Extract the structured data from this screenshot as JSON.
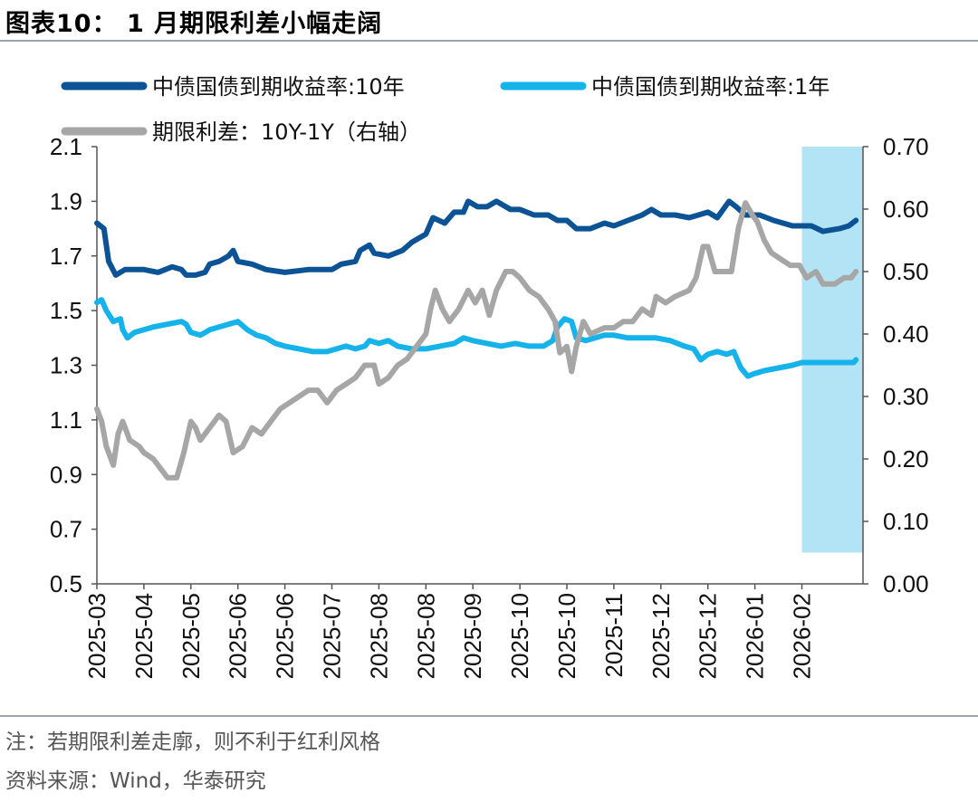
{
  "page": {
    "title": "图表10： 1 月期限利差小幅走阔",
    "note": "注：若期限利差走廓，则不利于红利风格",
    "source": "资料来源：Wind，华泰研究"
  },
  "chart_data": {
    "type": "line",
    "title": "1 月期限利差小幅走阔",
    "x_labels": [
      "2025-03",
      "2025-04",
      "2025-05",
      "2025-06",
      "2025-06",
      "2025-07",
      "2025-08",
      "2025-08",
      "2025-09",
      "2025-10",
      "2025-10",
      "2025-11",
      "2025-12",
      "2025-12",
      "2026-01",
      "2026-02"
    ],
    "y_left": {
      "min": 0.5,
      "max": 2.1,
      "ticks": [
        "0.5",
        "0.7",
        "0.9",
        "1.1",
        "1.3",
        "1.5",
        "1.7",
        "1.9",
        "2.1"
      ]
    },
    "y_right": {
      "min": 0.0,
      "max": 0.7,
      "ticks": [
        "0.00",
        "0.10",
        "0.20",
        "0.30",
        "0.40",
        "0.50",
        "0.60",
        "0.70"
      ]
    },
    "highlight": {
      "x_from": 15.0,
      "x_to": 16.3,
      "y_from": 0.05,
      "y_to": 0.7,
      "color": "#b3e4f6"
    },
    "series": [
      {
        "name": "中债国债到期收益率:10年",
        "axis": "left",
        "color": "#0b5394",
        "points": [
          [
            0,
            1.82
          ],
          [
            0.15,
            1.8
          ],
          [
            0.25,
            1.68
          ],
          [
            0.4,
            1.63
          ],
          [
            0.6,
            1.65
          ],
          [
            1.0,
            1.65
          ],
          [
            1.3,
            1.64
          ],
          [
            1.6,
            1.66
          ],
          [
            1.8,
            1.65
          ],
          [
            1.9,
            1.63
          ],
          [
            2.1,
            1.63
          ],
          [
            2.3,
            1.64
          ],
          [
            2.4,
            1.67
          ],
          [
            2.6,
            1.68
          ],
          [
            2.8,
            1.7
          ],
          [
            2.9,
            1.72
          ],
          [
            3.0,
            1.68
          ],
          [
            3.3,
            1.67
          ],
          [
            3.6,
            1.65
          ],
          [
            4.0,
            1.64
          ],
          [
            4.5,
            1.65
          ],
          [
            5.0,
            1.65
          ],
          [
            5.2,
            1.67
          ],
          [
            5.5,
            1.68
          ],
          [
            5.6,
            1.72
          ],
          [
            5.8,
            1.74
          ],
          [
            5.9,
            1.71
          ],
          [
            6.2,
            1.7
          ],
          [
            6.5,
            1.72
          ],
          [
            6.7,
            1.75
          ],
          [
            7.0,
            1.78
          ],
          [
            7.15,
            1.84
          ],
          [
            7.4,
            1.82
          ],
          [
            7.6,
            1.86
          ],
          [
            7.8,
            1.86
          ],
          [
            7.9,
            1.9
          ],
          [
            8.1,
            1.88
          ],
          [
            8.3,
            1.88
          ],
          [
            8.5,
            1.9
          ],
          [
            8.8,
            1.87
          ],
          [
            9.0,
            1.87
          ],
          [
            9.3,
            1.85
          ],
          [
            9.6,
            1.85
          ],
          [
            9.8,
            1.83
          ],
          [
            10.0,
            1.83
          ],
          [
            10.2,
            1.8
          ],
          [
            10.5,
            1.8
          ],
          [
            10.8,
            1.82
          ],
          [
            11.0,
            1.81
          ],
          [
            11.3,
            1.83
          ],
          [
            11.6,
            1.85
          ],
          [
            11.8,
            1.87
          ],
          [
            12.0,
            1.85
          ],
          [
            12.3,
            1.85
          ],
          [
            12.6,
            1.84
          ],
          [
            12.8,
            1.85
          ],
          [
            13.0,
            1.86
          ],
          [
            13.2,
            1.84
          ],
          [
            13.45,
            1.9
          ],
          [
            13.6,
            1.88
          ],
          [
            13.8,
            1.85
          ],
          [
            14.1,
            1.85
          ],
          [
            14.4,
            1.83
          ],
          [
            14.8,
            1.81
          ],
          [
            15.2,
            1.81
          ],
          [
            15.45,
            1.79
          ],
          [
            15.8,
            1.8
          ],
          [
            16.0,
            1.81
          ],
          [
            16.15,
            1.83
          ]
        ]
      },
      {
        "name": "中债国债到期收益率:1年",
        "axis": "left",
        "color": "#15b3ea",
        "points": [
          [
            0,
            1.53
          ],
          [
            0.1,
            1.54
          ],
          [
            0.2,
            1.5
          ],
          [
            0.35,
            1.46
          ],
          [
            0.5,
            1.47
          ],
          [
            0.55,
            1.43
          ],
          [
            0.65,
            1.4
          ],
          [
            0.8,
            1.42
          ],
          [
            1.0,
            1.43
          ],
          [
            1.2,
            1.44
          ],
          [
            1.5,
            1.45
          ],
          [
            1.8,
            1.46
          ],
          [
            1.9,
            1.45
          ],
          [
            2.0,
            1.42
          ],
          [
            2.2,
            1.41
          ],
          [
            2.4,
            1.43
          ],
          [
            2.6,
            1.44
          ],
          [
            2.8,
            1.45
          ],
          [
            3.0,
            1.46
          ],
          [
            3.2,
            1.43
          ],
          [
            3.4,
            1.41
          ],
          [
            3.6,
            1.4
          ],
          [
            3.8,
            1.38
          ],
          [
            4.0,
            1.37
          ],
          [
            4.3,
            1.36
          ],
          [
            4.6,
            1.35
          ],
          [
            4.9,
            1.35
          ],
          [
            5.1,
            1.36
          ],
          [
            5.3,
            1.37
          ],
          [
            5.5,
            1.36
          ],
          [
            5.7,
            1.37
          ],
          [
            5.8,
            1.39
          ],
          [
            6.0,
            1.38
          ],
          [
            6.2,
            1.39
          ],
          [
            6.4,
            1.37
          ],
          [
            6.7,
            1.36
          ],
          [
            7.0,
            1.36
          ],
          [
            7.3,
            1.37
          ],
          [
            7.6,
            1.38
          ],
          [
            7.8,
            1.4
          ],
          [
            8.0,
            1.39
          ],
          [
            8.3,
            1.38
          ],
          [
            8.6,
            1.37
          ],
          [
            8.9,
            1.38
          ],
          [
            9.2,
            1.37
          ],
          [
            9.5,
            1.37
          ],
          [
            9.7,
            1.39
          ],
          [
            9.8,
            1.44
          ],
          [
            9.95,
            1.47
          ],
          [
            10.1,
            1.46
          ],
          [
            10.2,
            1.4
          ],
          [
            10.4,
            1.39
          ],
          [
            10.6,
            1.4
          ],
          [
            10.8,
            1.41
          ],
          [
            11.0,
            1.41
          ],
          [
            11.3,
            1.4
          ],
          [
            11.6,
            1.4
          ],
          [
            11.9,
            1.4
          ],
          [
            12.2,
            1.39
          ],
          [
            12.5,
            1.37
          ],
          [
            12.7,
            1.36
          ],
          [
            12.85,
            1.32
          ],
          [
            13.0,
            1.34
          ],
          [
            13.2,
            1.35
          ],
          [
            13.4,
            1.34
          ],
          [
            13.55,
            1.35
          ],
          [
            13.7,
            1.29
          ],
          [
            13.85,
            1.26
          ],
          [
            14.0,
            1.27
          ],
          [
            14.2,
            1.28
          ],
          [
            14.5,
            1.29
          ],
          [
            14.8,
            1.3
          ],
          [
            15.0,
            1.31
          ],
          [
            15.3,
            1.31
          ],
          [
            15.6,
            1.31
          ],
          [
            15.9,
            1.31
          ],
          [
            16.1,
            1.31
          ],
          [
            16.15,
            1.32
          ]
        ]
      },
      {
        "name": "期限利差：10Y-1Y（右轴）",
        "axis": "right",
        "color": "#a6a6a6",
        "points": [
          [
            0,
            0.28
          ],
          [
            0.1,
            0.26
          ],
          [
            0.2,
            0.22
          ],
          [
            0.35,
            0.19
          ],
          [
            0.45,
            0.24
          ],
          [
            0.55,
            0.26
          ],
          [
            0.7,
            0.23
          ],
          [
            0.9,
            0.22
          ],
          [
            1.0,
            0.21
          ],
          [
            1.2,
            0.2
          ],
          [
            1.4,
            0.18
          ],
          [
            1.5,
            0.17
          ],
          [
            1.7,
            0.17
          ],
          [
            1.85,
            0.21
          ],
          [
            2.0,
            0.26
          ],
          [
            2.1,
            0.25
          ],
          [
            2.2,
            0.23
          ],
          [
            2.4,
            0.25
          ],
          [
            2.6,
            0.27
          ],
          [
            2.75,
            0.26
          ],
          [
            2.9,
            0.21
          ],
          [
            3.1,
            0.22
          ],
          [
            3.3,
            0.25
          ],
          [
            3.5,
            0.24
          ],
          [
            3.7,
            0.26
          ],
          [
            3.9,
            0.28
          ],
          [
            4.1,
            0.29
          ],
          [
            4.3,
            0.3
          ],
          [
            4.5,
            0.31
          ],
          [
            4.7,
            0.31
          ],
          [
            4.9,
            0.29
          ],
          [
            5.1,
            0.31
          ],
          [
            5.3,
            0.32
          ],
          [
            5.5,
            0.33
          ],
          [
            5.7,
            0.35
          ],
          [
            5.9,
            0.35
          ],
          [
            6.0,
            0.32
          ],
          [
            6.2,
            0.33
          ],
          [
            6.4,
            0.35
          ],
          [
            6.6,
            0.36
          ],
          [
            6.8,
            0.38
          ],
          [
            7.0,
            0.4
          ],
          [
            7.1,
            0.44
          ],
          [
            7.2,
            0.47
          ],
          [
            7.35,
            0.44
          ],
          [
            7.5,
            0.42
          ],
          [
            7.7,
            0.44
          ],
          [
            7.9,
            0.47
          ],
          [
            8.05,
            0.45
          ],
          [
            8.2,
            0.47
          ],
          [
            8.35,
            0.43
          ],
          [
            8.5,
            0.47
          ],
          [
            8.7,
            0.5
          ],
          [
            8.85,
            0.5
          ],
          [
            9.0,
            0.49
          ],
          [
            9.2,
            0.47
          ],
          [
            9.4,
            0.46
          ],
          [
            9.6,
            0.44
          ],
          [
            9.75,
            0.42
          ],
          [
            9.85,
            0.37
          ],
          [
            10.0,
            0.38
          ],
          [
            10.1,
            0.34
          ],
          [
            10.2,
            0.38
          ],
          [
            10.35,
            0.42
          ],
          [
            10.5,
            0.4
          ],
          [
            10.8,
            0.41
          ],
          [
            11.0,
            0.41
          ],
          [
            11.2,
            0.42
          ],
          [
            11.4,
            0.42
          ],
          [
            11.6,
            0.44
          ],
          [
            11.8,
            0.43
          ],
          [
            11.9,
            0.46
          ],
          [
            12.1,
            0.45
          ],
          [
            12.3,
            0.46
          ],
          [
            12.6,
            0.47
          ],
          [
            12.75,
            0.49
          ],
          [
            12.9,
            0.54
          ],
          [
            13.0,
            0.54
          ],
          [
            13.15,
            0.5
          ],
          [
            13.3,
            0.5
          ],
          [
            13.5,
            0.5
          ],
          [
            13.65,
            0.57
          ],
          [
            13.8,
            0.61
          ],
          [
            13.95,
            0.59
          ],
          [
            14.05,
            0.58
          ],
          [
            14.2,
            0.55
          ],
          [
            14.35,
            0.53
          ],
          [
            14.55,
            0.52
          ],
          [
            14.75,
            0.51
          ],
          [
            14.95,
            0.51
          ],
          [
            15.1,
            0.49
          ],
          [
            15.3,
            0.5
          ],
          [
            15.45,
            0.48
          ],
          [
            15.7,
            0.48
          ],
          [
            15.9,
            0.49
          ],
          [
            16.05,
            0.49
          ],
          [
            16.15,
            0.5
          ]
        ]
      }
    ],
    "legend": [
      {
        "label": "中债国债到期收益率:10年",
        "color": "#0b5394"
      },
      {
        "label": "中债国债到期收益率:1年",
        "color": "#15b3ea"
      },
      {
        "label": "期限利差：10Y-1Y（右轴）",
        "color": "#a6a6a6"
      }
    ]
  }
}
